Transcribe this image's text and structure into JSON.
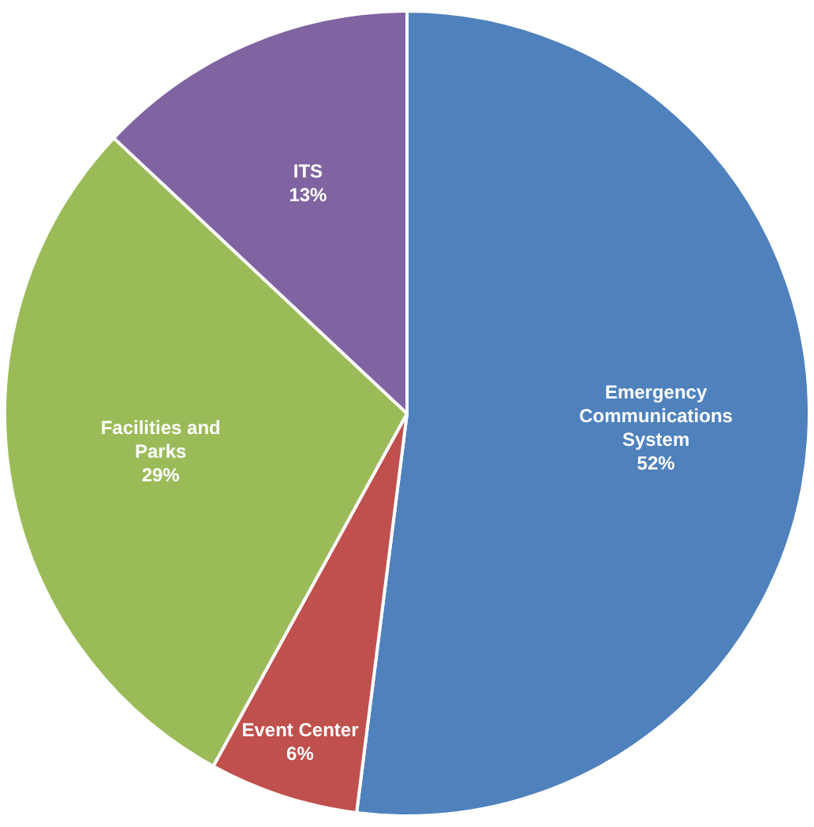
{
  "chart_data": {
    "type": "pie",
    "categories": [
      "Emergency Communications System",
      "Event Center",
      "Facilities and Parks",
      "ITS"
    ],
    "values": [
      52,
      6,
      29,
      13
    ],
    "colors": [
      "#4f81bd",
      "#c0504d",
      "#9bbb59",
      "#8064a2"
    ],
    "value_labels": [
      "52%",
      "6%",
      "29%",
      "13%"
    ],
    "legend": false
  }
}
